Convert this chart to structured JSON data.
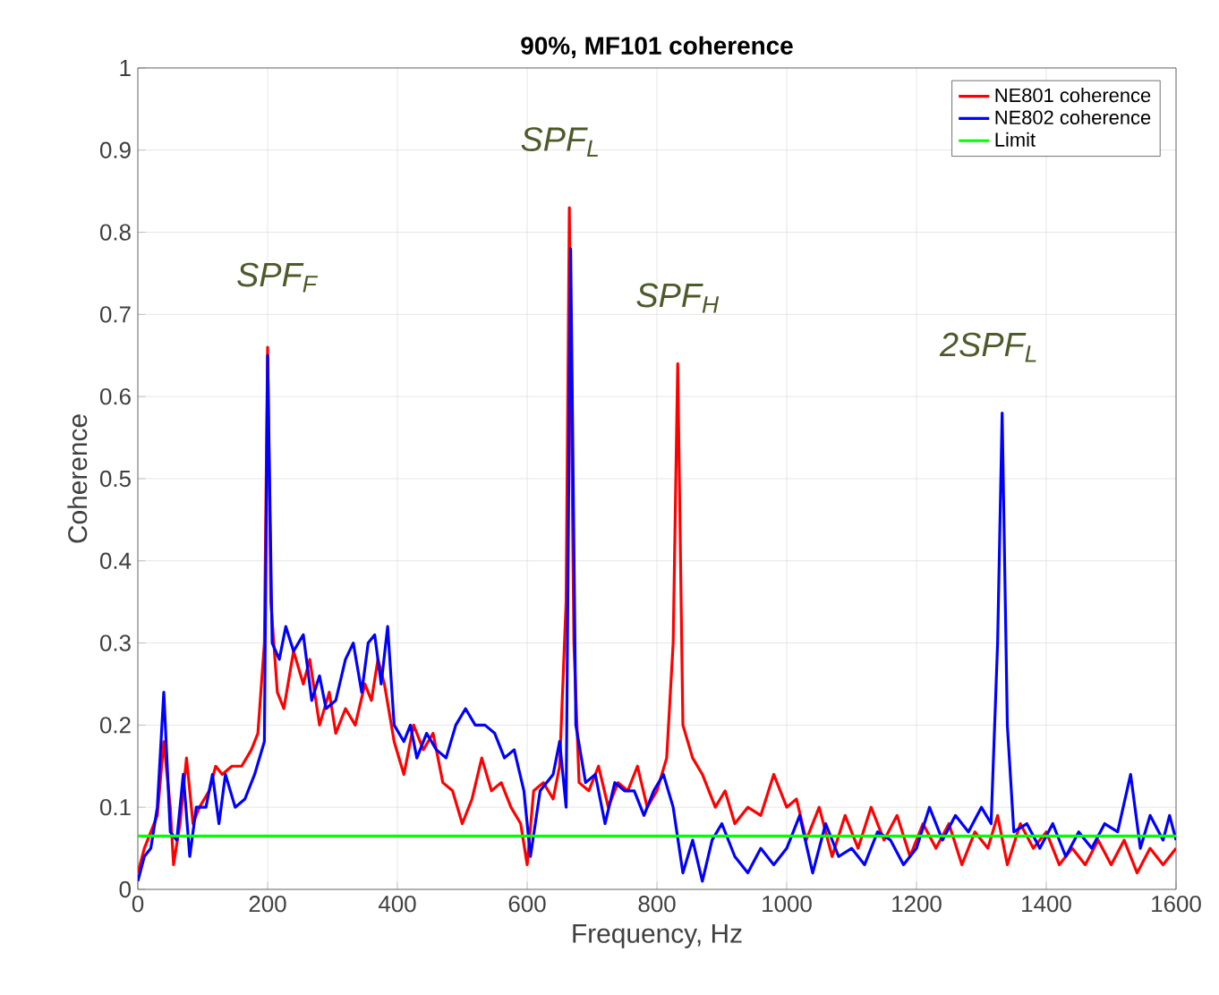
{
  "chart_data": {
    "type": "line",
    "title": "90%, MF101 coherence",
    "xlabel": "Frequency, Hz",
    "ylabel": "Coherence",
    "xlim": [
      0,
      1600
    ],
    "xticks": [
      0,
      200,
      400,
      600,
      800,
      1000,
      1200,
      1400,
      1600
    ],
    "ylim": [
      0,
      1
    ],
    "yticks": [
      0,
      0.1,
      0.2,
      0.3,
      0.4,
      0.5,
      0.6,
      0.7,
      0.8,
      0.9,
      1
    ],
    "grid": true,
    "legend": "top right",
    "annotations": [
      "SPF$_{F}$",
      "SPF$_{L}$",
      "SPF$_{H}$",
      "2SPF$_{L}$"
    ],
    "series": [
      {
        "name": "NE801 coherence",
        "color": "#ff0000",
        "x": [
          0,
          10,
          20,
          30,
          40,
          50,
          55,
          65,
          75,
          85,
          95,
          110,
          120,
          130,
          145,
          160,
          175,
          185,
          195,
          200,
          205,
          215,
          225,
          240,
          255,
          265,
          280,
          295,
          305,
          320,
          335,
          350,
          360,
          370,
          380,
          395,
          410,
          425,
          440,
          455,
          470,
          485,
          500,
          515,
          530,
          545,
          560,
          575,
          590,
          600,
          610,
          625,
          640,
          650,
          660,
          665,
          672,
          680,
          695,
          710,
          725,
          740,
          755,
          770,
          785,
          800,
          815,
          825,
          832,
          840,
          855,
          870,
          890,
          905,
          920,
          940,
          960,
          980,
          1000,
          1015,
          1030,
          1050,
          1070,
          1090,
          1110,
          1130,
          1150,
          1170,
          1190,
          1210,
          1230,
          1250,
          1270,
          1290,
          1310,
          1325,
          1340,
          1360,
          1380,
          1400,
          1420,
          1440,
          1460,
          1480,
          1500,
          1520,
          1540,
          1560,
          1580,
          1600
        ],
        "values": [
          0.02,
          0.05,
          0.07,
          0.09,
          0.18,
          0.1,
          0.03,
          0.08,
          0.16,
          0.08,
          0.1,
          0.12,
          0.15,
          0.14,
          0.15,
          0.15,
          0.17,
          0.19,
          0.3,
          0.66,
          0.35,
          0.24,
          0.22,
          0.29,
          0.25,
          0.28,
          0.2,
          0.24,
          0.19,
          0.22,
          0.2,
          0.25,
          0.23,
          0.28,
          0.25,
          0.18,
          0.14,
          0.2,
          0.17,
          0.19,
          0.13,
          0.12,
          0.08,
          0.11,
          0.16,
          0.12,
          0.13,
          0.1,
          0.08,
          0.03,
          0.12,
          0.13,
          0.11,
          0.15,
          0.35,
          0.83,
          0.3,
          0.13,
          0.12,
          0.15,
          0.1,
          0.13,
          0.12,
          0.15,
          0.1,
          0.12,
          0.16,
          0.3,
          0.64,
          0.2,
          0.16,
          0.14,
          0.1,
          0.12,
          0.08,
          0.1,
          0.09,
          0.14,
          0.1,
          0.11,
          0.06,
          0.1,
          0.04,
          0.09,
          0.05,
          0.1,
          0.06,
          0.09,
          0.04,
          0.08,
          0.05,
          0.08,
          0.03,
          0.07,
          0.05,
          0.09,
          0.03,
          0.08,
          0.05,
          0.07,
          0.03,
          0.05,
          0.03,
          0.06,
          0.03,
          0.06,
          0.02,
          0.05,
          0.03,
          0.05
        ]
      },
      {
        "name": "NE802 coherence",
        "color": "#0000ff",
        "x": [
          0,
          10,
          20,
          30,
          40,
          50,
          60,
          70,
          80,
          90,
          105,
          115,
          125,
          135,
          150,
          165,
          180,
          195,
          200,
          207,
          218,
          228,
          240,
          255,
          268,
          280,
          290,
          305,
          320,
          332,
          345,
          355,
          365,
          375,
          385,
          395,
          410,
          420,
          430,
          445,
          460,
          475,
          490,
          505,
          520,
          535,
          550,
          565,
          580,
          595,
          605,
          620,
          640,
          650,
          660,
          667,
          675,
          690,
          705,
          720,
          735,
          750,
          765,
          780,
          795,
          810,
          825,
          840,
          855,
          870,
          885,
          900,
          920,
          940,
          960,
          980,
          1000,
          1020,
          1040,
          1060,
          1080,
          1100,
          1120,
          1140,
          1160,
          1180,
          1200,
          1220,
          1240,
          1260,
          1280,
          1300,
          1315,
          1325,
          1332,
          1340,
          1350,
          1370,
          1390,
          1410,
          1430,
          1450,
          1470,
          1490,
          1510,
          1530,
          1545,
          1560,
          1580,
          1590,
          1600
        ],
        "values": [
          0.01,
          0.04,
          0.05,
          0.1,
          0.24,
          0.07,
          0.06,
          0.14,
          0.04,
          0.1,
          0.1,
          0.14,
          0.08,
          0.14,
          0.1,
          0.11,
          0.14,
          0.18,
          0.65,
          0.3,
          0.28,
          0.32,
          0.29,
          0.31,
          0.23,
          0.26,
          0.22,
          0.23,
          0.28,
          0.3,
          0.24,
          0.3,
          0.31,
          0.25,
          0.32,
          0.2,
          0.18,
          0.2,
          0.16,
          0.19,
          0.17,
          0.16,
          0.2,
          0.22,
          0.2,
          0.2,
          0.19,
          0.16,
          0.17,
          0.12,
          0.04,
          0.12,
          0.14,
          0.18,
          0.1,
          0.78,
          0.2,
          0.13,
          0.14,
          0.08,
          0.13,
          0.12,
          0.12,
          0.09,
          0.12,
          0.14,
          0.1,
          0.02,
          0.06,
          0.01,
          0.06,
          0.08,
          0.04,
          0.02,
          0.05,
          0.03,
          0.05,
          0.09,
          0.02,
          0.08,
          0.04,
          0.05,
          0.03,
          0.07,
          0.06,
          0.03,
          0.05,
          0.1,
          0.06,
          0.09,
          0.07,
          0.1,
          0.08,
          0.3,
          0.58,
          0.2,
          0.07,
          0.08,
          0.05,
          0.08,
          0.04,
          0.07,
          0.05,
          0.08,
          0.07,
          0.14,
          0.05,
          0.09,
          0.06,
          0.09,
          0.06
        ]
      },
      {
        "name": "Limit",
        "color": "#00ff00",
        "x": [
          0,
          1600
        ],
        "values": [
          0.065,
          0.065
        ]
      }
    ]
  }
}
